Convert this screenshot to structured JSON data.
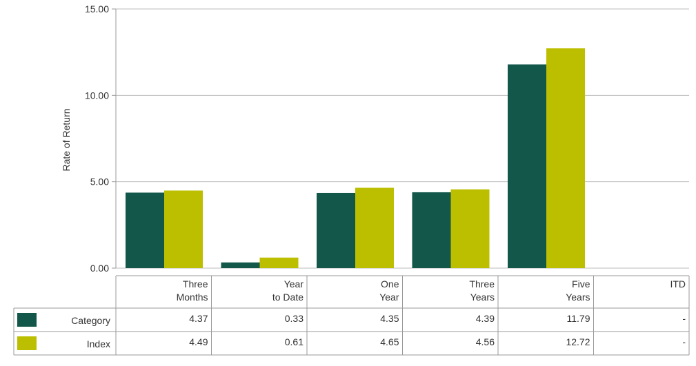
{
  "chart_data": {
    "type": "bar",
    "ylabel": "Rate of Return",
    "ylim": [
      0,
      15
    ],
    "y_ticks": [
      "0.00",
      "5.00",
      "10.00",
      "15.00"
    ],
    "grid": true,
    "categories": [
      [
        "Three",
        "Months"
      ],
      [
        "Year",
        "to Date"
      ],
      [
        "One",
        "Year"
      ],
      [
        "Three",
        "Years"
      ],
      [
        "Five",
        "Years"
      ],
      [
        "ITD"
      ]
    ],
    "series": [
      {
        "name": "Category",
        "color": "#12574a",
        "values": [
          4.37,
          0.33,
          4.35,
          4.39,
          11.79,
          null
        ],
        "labels": [
          "4.37",
          "0.33",
          "4.35",
          "4.39",
          "11.79",
          "-"
        ]
      },
      {
        "name": "Index",
        "color": "#bcbf00",
        "values": [
          4.49,
          0.61,
          4.65,
          4.56,
          12.72,
          null
        ],
        "labels": [
          "4.49",
          "0.61",
          "4.65",
          "4.56",
          "12.72",
          "-"
        ]
      }
    ]
  }
}
